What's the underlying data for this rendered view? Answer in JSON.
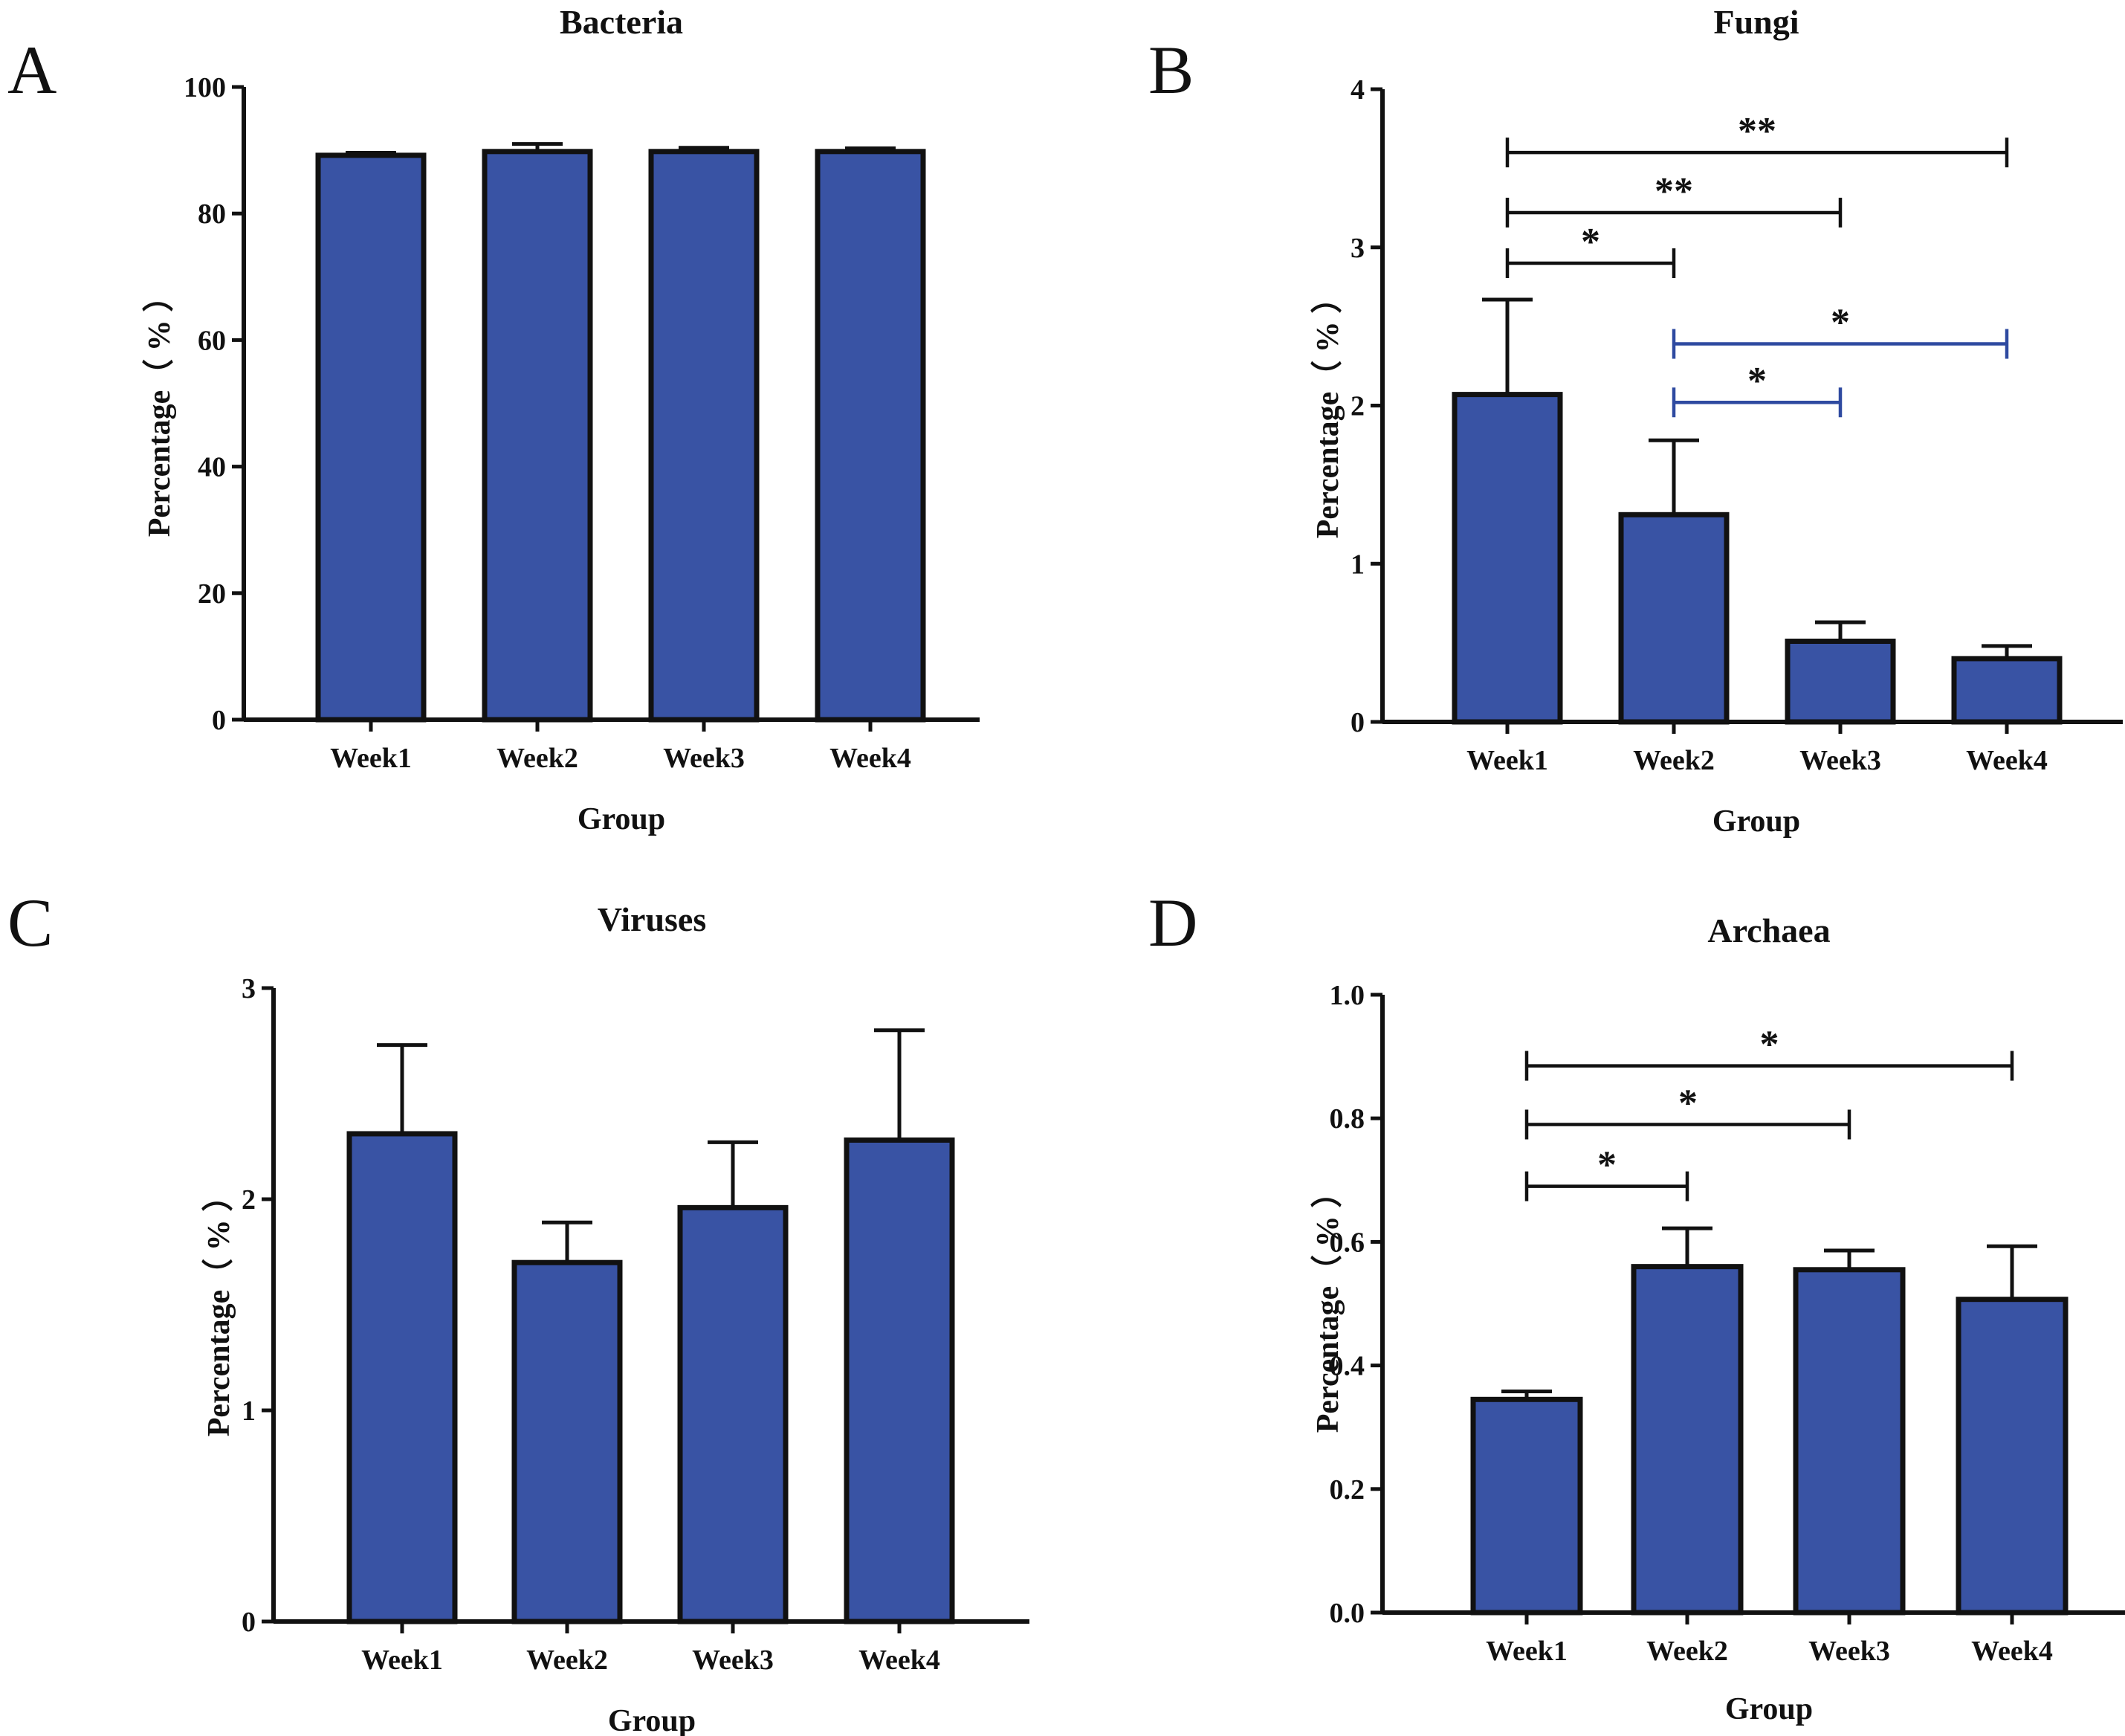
{
  "figure": {
    "bar_color": "#3953a4",
    "ink_color": "#111111",
    "alt_sig_color": "#2e4aa0"
  },
  "chart_data": [
    {
      "panel": "A",
      "type": "bar",
      "title": "Bacteria",
      "xlabel": "Group",
      "ylabel": "Percentage（ % ）",
      "categories": [
        "Week1",
        "Week2",
        "Week3",
        "Week4"
      ],
      "values": [
        89.2,
        89.8,
        89.8,
        89.8
      ],
      "errors": [
        0.4,
        1.2,
        0.6,
        0.5
      ],
      "ylim": [
        0,
        100
      ],
      "yticks": [
        0,
        20,
        40,
        60,
        80,
        100
      ],
      "ytick_labels": [
        "0",
        "20",
        "40",
        "60",
        "80",
        "100"
      ],
      "significance": []
    },
    {
      "panel": "B",
      "type": "bar",
      "title": "Fungi",
      "xlabel": "Group",
      "ylabel": "Percentage（ % ）",
      "categories": [
        "Week1",
        "Week2",
        "Week3",
        "Week4"
      ],
      "values": [
        2.07,
        1.31,
        0.51,
        0.4
      ],
      "errors": [
        0.6,
        0.47,
        0.12,
        0.08
      ],
      "ylim": [
        0,
        4
      ],
      "yticks": [
        0,
        1,
        2,
        3,
        4
      ],
      "ytick_labels": [
        "0",
        "1",
        "2",
        "3",
        "4"
      ],
      "significance": [
        {
          "from": 0,
          "to": 3,
          "label": "**",
          "y": 3.6,
          "color": "#111111"
        },
        {
          "from": 0,
          "to": 2,
          "label": "**",
          "y": 3.22,
          "color": "#111111"
        },
        {
          "from": 0,
          "to": 1,
          "label": "*",
          "y": 2.9,
          "color": "#111111"
        },
        {
          "from": 1,
          "to": 3,
          "label": "*",
          "y": 2.39,
          "color": "#2e4aa0"
        },
        {
          "from": 1,
          "to": 2,
          "label": "*",
          "y": 2.02,
          "color": "#2e4aa0"
        }
      ]
    },
    {
      "panel": "C",
      "type": "bar",
      "title": "Viruses",
      "xlabel": "Group",
      "ylabel": "Percentage（ % ）",
      "categories": [
        "Week1",
        "Week2",
        "Week3",
        "Week4"
      ],
      "values": [
        2.31,
        1.7,
        1.96,
        2.28
      ],
      "errors": [
        0.42,
        0.19,
        0.31,
        0.52
      ],
      "ylim": [
        0,
        3
      ],
      "yticks": [
        0,
        1,
        2,
        3
      ],
      "ytick_labels": [
        "0",
        "1",
        "2",
        "3"
      ],
      "significance": []
    },
    {
      "panel": "D",
      "type": "bar",
      "title": "Archaea",
      "xlabel": "Group",
      "ylabel": "Percentage（ % ）",
      "categories": [
        "Week1",
        "Week2",
        "Week3",
        "Week4"
      ],
      "values": [
        0.345,
        0.56,
        0.555,
        0.507
      ],
      "errors": [
        0.013,
        0.062,
        0.031,
        0.086
      ],
      "ylim": [
        0,
        1.0
      ],
      "yticks": [
        0,
        0.2,
        0.4,
        0.6,
        0.8,
        1.0
      ],
      "ytick_labels": [
        "0.0",
        "0.2",
        "0.4",
        "0.6",
        "0.8",
        "1.0"
      ],
      "significance": [
        {
          "from": 0,
          "to": 3,
          "label": "*",
          "y": 0.885,
          "color": "#111111"
        },
        {
          "from": 0,
          "to": 2,
          "label": "*",
          "y": 0.79,
          "color": "#111111"
        },
        {
          "from": 0,
          "to": 1,
          "label": "*",
          "y": 0.69,
          "color": "#111111"
        }
      ]
    }
  ]
}
